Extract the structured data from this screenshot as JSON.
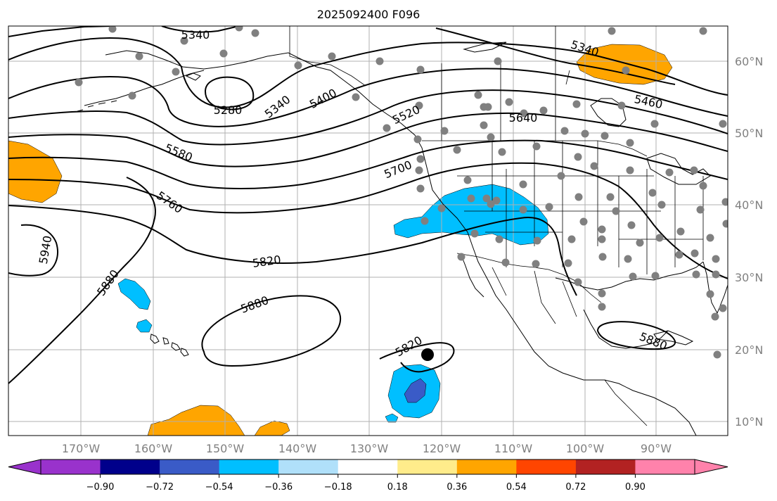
{
  "title": "2025092400 F096",
  "map": {
    "longitude_labels": [
      "170°W",
      "160°W",
      "150°W",
      "140°W",
      "130°W",
      "120°W",
      "110°W",
      "100°W",
      "90°W"
    ],
    "latitude_labels": [
      "60°N",
      "50°N",
      "40°N",
      "30°N",
      "20°N",
      "10°N"
    ],
    "contour_labels": [
      "5340",
      "5340",
      "5340",
      "5280",
      "5340",
      "5400",
      "5520",
      "5640",
      "5460",
      "5580",
      "5700",
      "5760",
      "5820",
      "5940",
      "5880",
      "5880",
      "5820",
      "5880"
    ],
    "colors": {
      "orange_anomaly": "#ffa500",
      "cyan_anomaly": "#00bfff",
      "blue_anomaly": "#3a5bc7",
      "stations": "#808080"
    }
  },
  "colorbar": {
    "tick_labels": [
      "−0.90",
      "−0.72",
      "−0.54",
      "−0.36",
      "−0.18",
      "0.18",
      "0.36",
      "0.54",
      "0.72",
      "0.90"
    ],
    "colors": [
      "#9932cc",
      "#00008b",
      "#3a5bc7",
      "#00bfff",
      "#b0e0fa",
      "#ffffff",
      "#ffec8b",
      "#ffa500",
      "#ff4500",
      "#b22222",
      "#ff82ab",
      "#ff82ab"
    ]
  }
}
